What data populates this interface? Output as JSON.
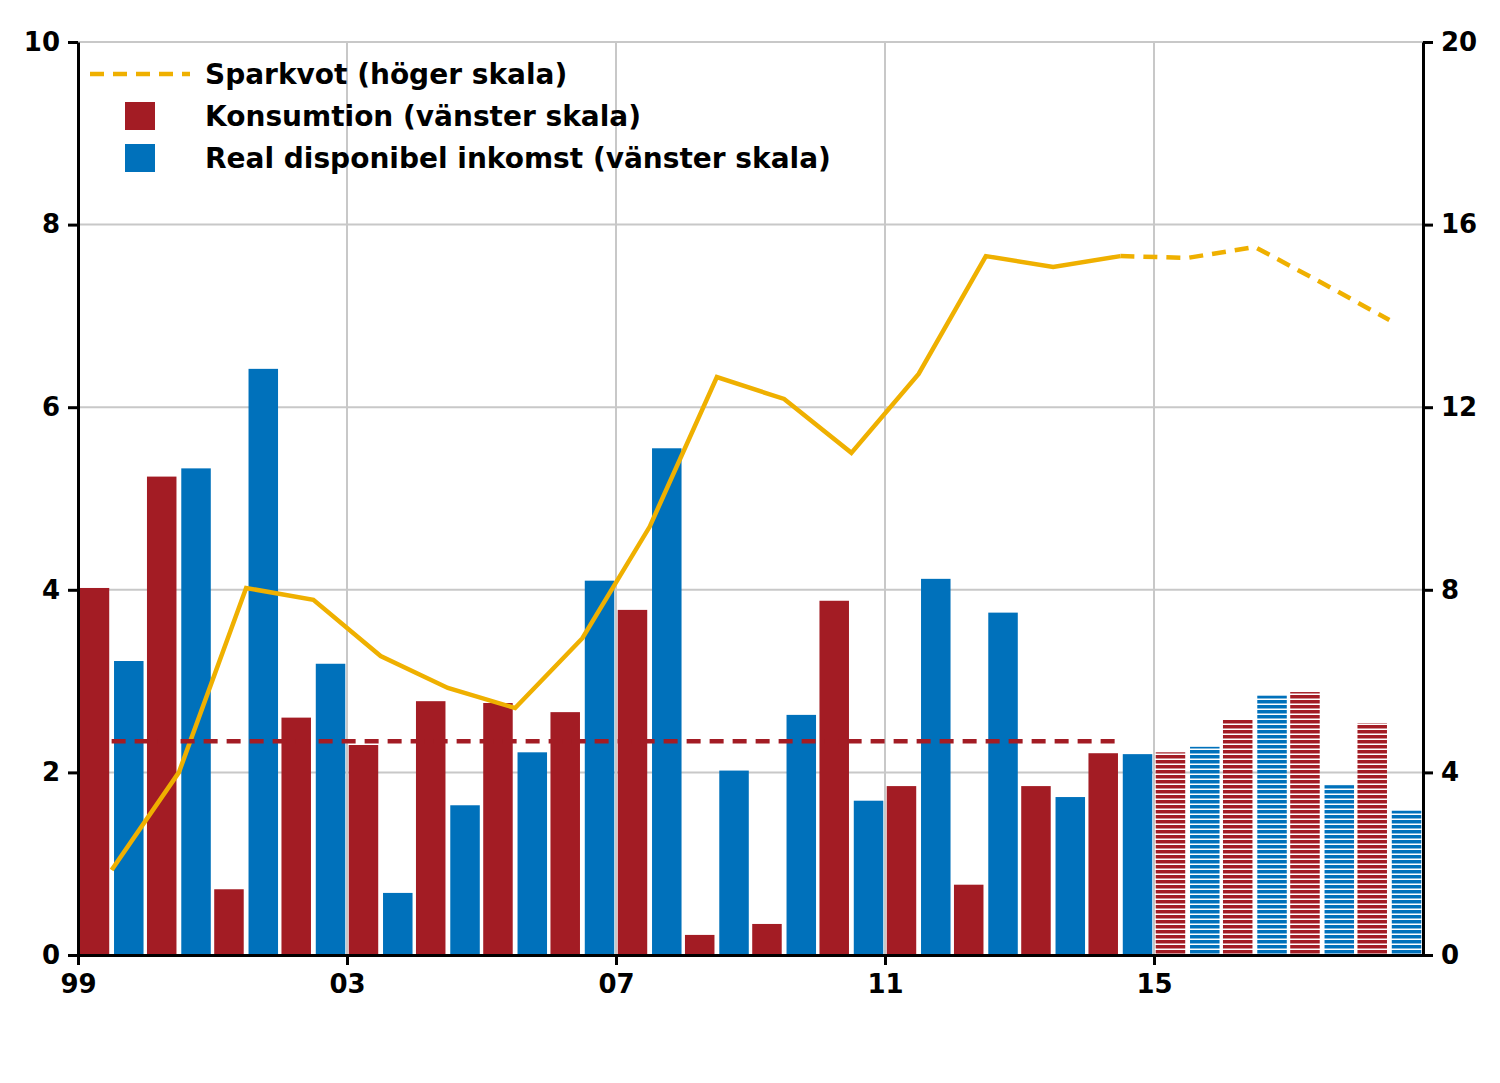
{
  "chart_data": {
    "type": "bar",
    "categories": [
      "99",
      null,
      null,
      null,
      "03",
      null,
      null,
      null,
      "07",
      null,
      null,
      null,
      "11",
      null,
      null,
      null,
      "15",
      null,
      null,
      null
    ],
    "ylim": [
      0,
      10
    ],
    "yticks": [
      0,
      2,
      4,
      6,
      8,
      10
    ],
    "y2lim": [
      0,
      20
    ],
    "y2ticks": [
      0,
      4,
      8,
      12,
      16,
      20
    ],
    "grid": true,
    "legend": "upper left",
    "series": [
      {
        "name": "Sparkvot (höger skala)",
        "type": "line",
        "axis": "y2",
        "color": "#efb000",
        "line_style": "dashed",
        "values": [
          null,
          null,
          null,
          null,
          null,
          null,
          null,
          null,
          null,
          null,
          null,
          null,
          null,
          null,
          null,
          15.31,
          15.27,
          15.51,
          14.72,
          13.91
        ]
      },
      {
        "name": "Konsumtion (vänster skala)",
        "type": "bar",
        "color": "#a31c24",
        "values": [
          4.02,
          5.24,
          0.72,
          2.6,
          2.3,
          2.78,
          2.76,
          2.66,
          3.78,
          0.22,
          0.34,
          3.88,
          1.85,
          0.77,
          1.85,
          2.21,
          null,
          null,
          null,
          null
        ]
      },
      {
        "name": "Real disponibel inkomst (vänster skala)",
        "type": "bar",
        "color": "#0071bb",
        "values": [
          3.22,
          5.33,
          6.42,
          3.19,
          0.68,
          1.64,
          2.22,
          4.1,
          5.55,
          2.02,
          2.63,
          1.69,
          4.12,
          3.75,
          1.73,
          2.2,
          null,
          null,
          null,
          null
        ]
      },
      {
        "type": "line",
        "axis": "y2",
        "color": "#efb000",
        "line_style": "solid",
        "values": [
          1.86,
          4.0,
          8.04,
          7.78,
          6.55,
          5.85,
          5.41,
          6.94,
          9.38,
          12.66,
          12.18,
          11.0,
          12.73,
          15.31,
          15.07,
          15.31,
          null,
          null,
          null,
          null
        ]
      },
      {
        "type": "bar",
        "color": "#a31c24",
        "marker": "striped",
        "values": [
          null,
          null,
          null,
          null,
          null,
          null,
          null,
          null,
          null,
          null,
          null,
          null,
          null,
          null,
          null,
          null,
          2.22,
          2.58,
          2.88,
          2.54
        ]
      },
      {
        "type": "bar",
        "color": "#0071bb",
        "marker": "striped",
        "values": [
          null,
          null,
          null,
          null,
          null,
          null,
          null,
          null,
          null,
          null,
          null,
          null,
          null,
          null,
          null,
          null,
          2.28,
          2.84,
          1.86,
          1.58
        ]
      },
      {
        "type": "line",
        "color": "#a31c24",
        "line_style": "dashed",
        "values": [
          2.34,
          2.34,
          2.34,
          2.34,
          2.34,
          2.34,
          2.34,
          2.34,
          2.34,
          2.34,
          2.34,
          2.34,
          2.34,
          2.34,
          2.34,
          2.34,
          null,
          null,
          null,
          null
        ]
      }
    ]
  }
}
